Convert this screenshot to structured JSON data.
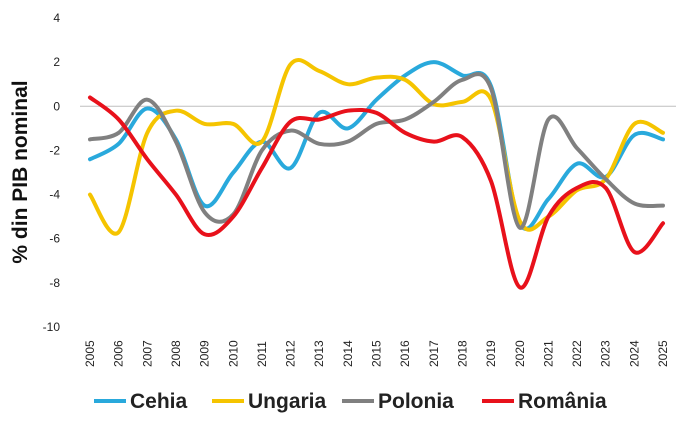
{
  "chart_data": {
    "type": "line",
    "title": "",
    "xlabel": "",
    "ylabel": "% din PIB nominal",
    "ylim": [
      -10,
      4
    ],
    "yticks": [
      4,
      2,
      0,
      -2,
      -4,
      -6,
      -8,
      -10
    ],
    "grid": false,
    "legend_position": "bottom",
    "categories": [
      "2005",
      "2006",
      "2007",
      "2008",
      "2009",
      "2010",
      "2011",
      "2012",
      "2013",
      "2014",
      "2015",
      "2016",
      "2017",
      "2018",
      "2019",
      "2020",
      "2021",
      "2022",
      "2023",
      "2024",
      "2025"
    ],
    "series": [
      {
        "name": "Cehia",
        "color": "#29a9dc",
        "values": [
          -2.4,
          -1.7,
          -0.1,
          -1.5,
          -4.5,
          -3.0,
          -1.6,
          -2.8,
          -0.3,
          -1.0,
          0.3,
          1.4,
          2.0,
          1.4,
          0.9,
          -5.3,
          -4.2,
          -2.6,
          -3.2,
          -1.3,
          -1.5
        ]
      },
      {
        "name": "Ungaria",
        "color": "#f5c400",
        "values": [
          -4.0,
          -5.7,
          -1.2,
          -0.2,
          -0.8,
          -0.8,
          -1.6,
          1.9,
          1.6,
          1.0,
          1.3,
          1.2,
          0.1,
          0.2,
          0.3,
          -5.2,
          -5.0,
          -3.8,
          -3.3,
          -0.8,
          -1.2
        ]
      },
      {
        "name": "Polonia",
        "color": "#808080",
        "values": [
          -1.5,
          -1.2,
          0.3,
          -1.6,
          -4.8,
          -4.9,
          -2.0,
          -1.1,
          -1.7,
          -1.6,
          -0.8,
          -0.6,
          0.2,
          1.2,
          0.8,
          -5.5,
          -0.6,
          -1.9,
          -3.3,
          -4.4,
          -4.5
        ]
      },
      {
        "name": "România",
        "color": "#e8111b",
        "values": [
          0.4,
          -0.6,
          -2.4,
          -4.0,
          -5.8,
          -5.0,
          -2.8,
          -0.7,
          -0.6,
          -0.2,
          -0.3,
          -1.2,
          -1.6,
          -1.4,
          -3.4,
          -8.2,
          -5.0,
          -3.7,
          -3.7,
          -6.6,
          -5.3
        ]
      }
    ]
  }
}
